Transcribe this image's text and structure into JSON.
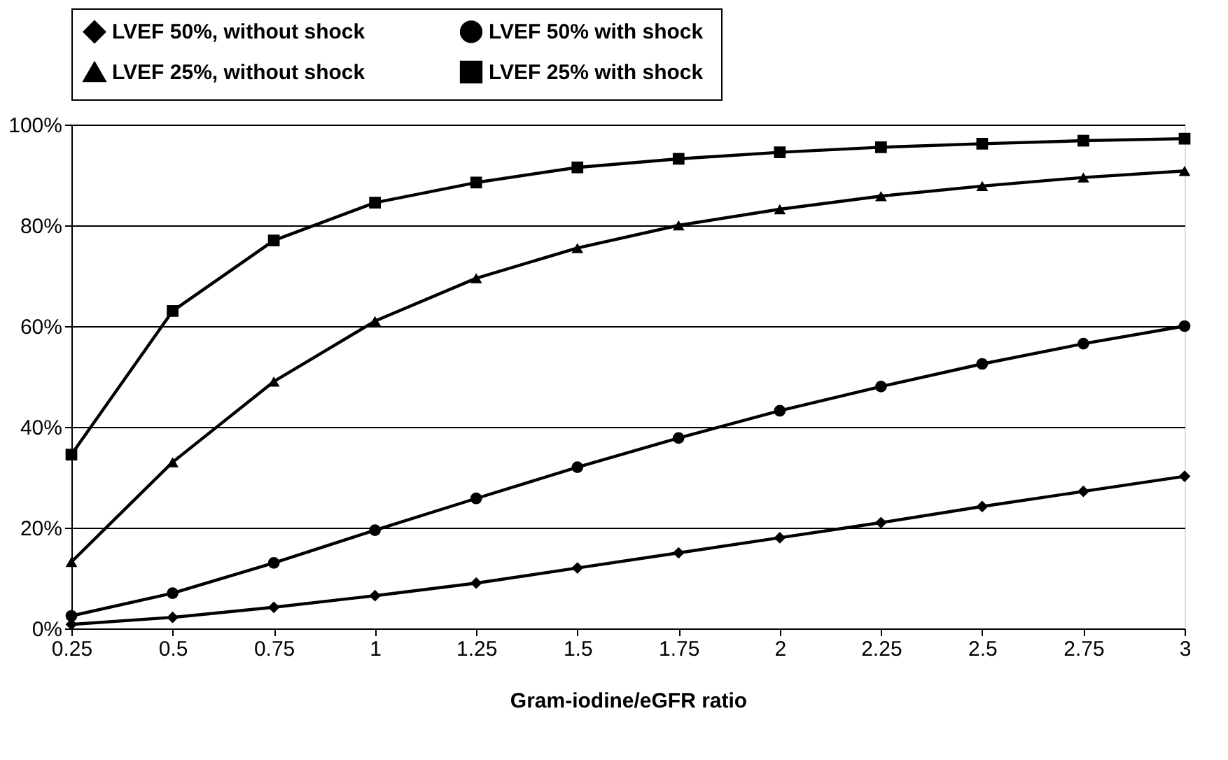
{
  "chart_data": {
    "type": "line",
    "xlabel": "Gram-iodine/eGFR ratio",
    "x": [
      0.25,
      0.5,
      0.75,
      1,
      1.25,
      1.5,
      1.75,
      2,
      2.25,
      2.5,
      2.75,
      3
    ],
    "xlim": [
      0.25,
      3
    ],
    "xticks": [
      0.25,
      0.5,
      0.75,
      1,
      1.25,
      1.5,
      1.75,
      2,
      2.25,
      2.5,
      2.75,
      3
    ],
    "ylim": [
      0,
      100
    ],
    "yticks": [
      {
        "value": 0,
        "label": "0%"
      },
      {
        "value": 20,
        "label": "20%"
      },
      {
        "value": 40,
        "label": "40%"
      },
      {
        "value": 60,
        "label": "60%"
      },
      {
        "value": 80,
        "label": "80%"
      },
      {
        "value": 100,
        "label": "100%"
      }
    ],
    "grid": "y",
    "legend": "top",
    "line_style": "solid",
    "series": [
      {
        "name": "LVEF 50%,  without shock",
        "color": "#000000",
        "marker": "diamond",
        "values": [
          0.8,
          2.2,
          4.2,
          6.5,
          9,
          12,
          15,
          18,
          21,
          24.2,
          27.2,
          30.2
        ]
      },
      {
        "name": "LVEF 50%  with shock",
        "color": "#000000",
        "marker": "circle",
        "values": [
          2.5,
          7,
          13,
          19.5,
          25.8,
          32,
          37.8,
          43.2,
          48,
          52.5,
          56.5,
          60
        ]
      },
      {
        "name": "LVEF 25%,  without shock",
        "color": "#000000",
        "marker": "triangle",
        "values": [
          13.2,
          33,
          49,
          61,
          69.5,
          75.5,
          80,
          83.2,
          85.8,
          87.8,
          89.5,
          90.8
        ]
      },
      {
        "name": "LVEF 25%  with shock",
        "color": "#000000",
        "marker": "square",
        "values": [
          34.5,
          63,
          77,
          84.5,
          88.5,
          91.5,
          93.2,
          94.5,
          95.5,
          96.2,
          96.8,
          97.2
        ]
      }
    ]
  }
}
